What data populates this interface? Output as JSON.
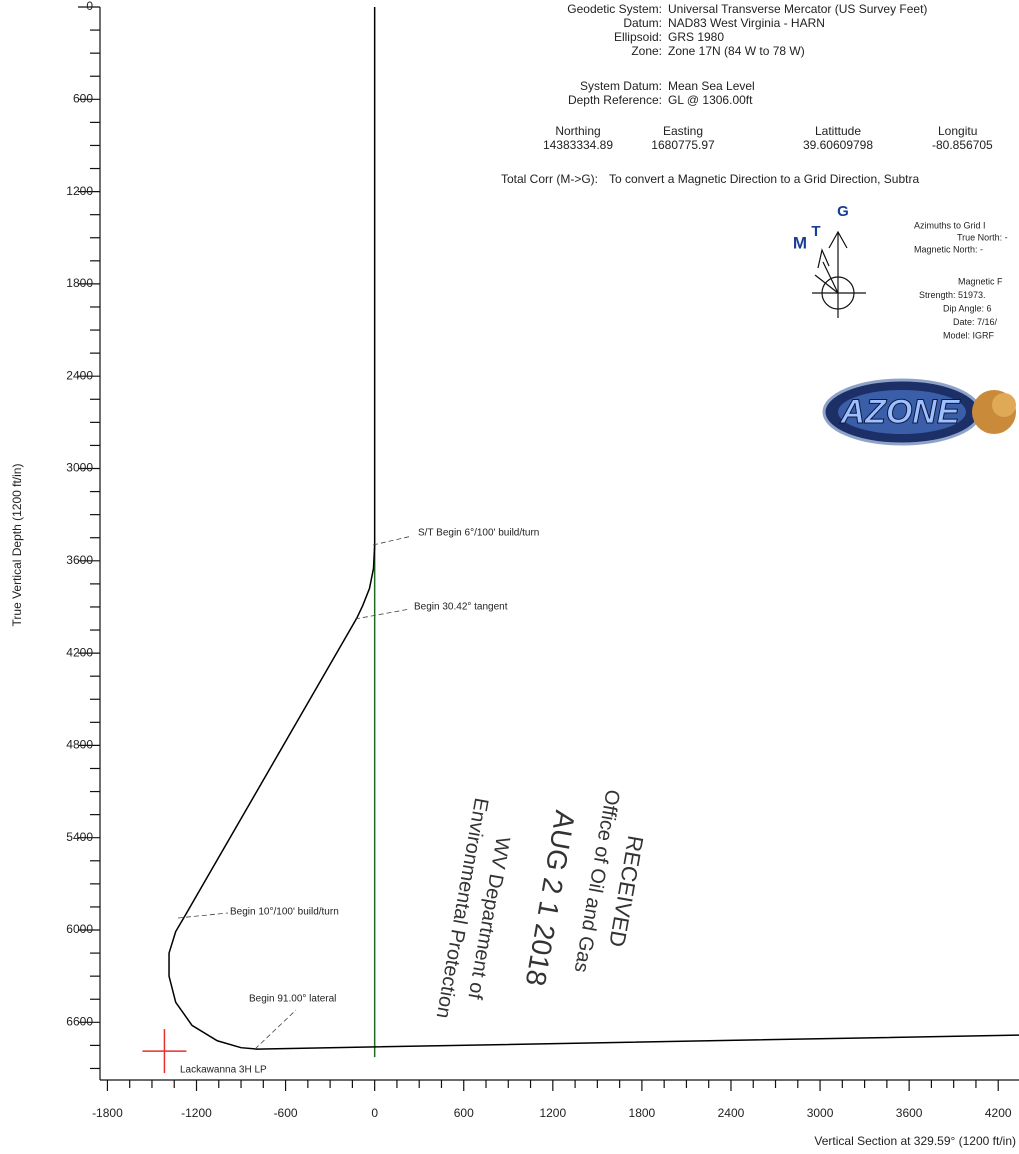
{
  "info": {
    "geodetic": [
      {
        "label": "Geodetic System:",
        "value": "Universal Transverse Mercator (US Survey Feet)"
      },
      {
        "label": "Datum:",
        "value": "NAD83 West Virginia - HARN"
      },
      {
        "label": "Ellipsoid:",
        "value": "GRS 1980"
      },
      {
        "label": "Zone:",
        "value": "Zone 17N (84 W to 78 W)"
      },
      {
        "label": "System Datum:",
        "value": "Mean Sea Level"
      },
      {
        "label": "Depth Reference:",
        "value": "GL @ 1306.00ft"
      }
    ],
    "coordinates": [
      {
        "label": "Northing",
        "value": "14383334.89"
      },
      {
        "label": "Easting",
        "value": "1680775.97"
      },
      {
        "label": "Latittude",
        "value": "39.60609798"
      },
      {
        "label": "Longitu",
        "value": "-80.856705"
      }
    ],
    "total_corr": {
      "label": "Total Corr (M->G):",
      "value": "To convert a Magnetic Direction to a Grid Direction, Subtra"
    },
    "azimuths": [
      "Azimuths to Grid I",
      "True North: -",
      "Magnetic North: -"
    ],
    "magnetic": [
      "Magnetic F",
      "Strength: 51973.",
      "Dip Angle: 6",
      "Date: 7/16/",
      "Model: IGRF"
    ],
    "north_arrow": [
      "M",
      "T",
      "G"
    ],
    "logo": "AZONE",
    "stamp": [
      "RECEIVED",
      "Office of Oil and Gas",
      "AUG 2 1 2018",
      "WV Department of",
      "Environmental Protection"
    ]
  },
  "chart_data": {
    "type": "line",
    "x_label": "Vertical Section at 329.59° (1200 ft/in)",
    "y_label": "True Vertical Depth (1200 ft/in)",
    "xlim": [
      -1850,
      4340
    ],
    "ylim": [
      6975,
      0
    ],
    "xticks": [
      -1800,
      -1200,
      -600,
      0,
      600,
      1200,
      1800,
      2400,
      3000,
      3600,
      4200
    ],
    "yticks": [
      0,
      600,
      1200,
      1800,
      2400,
      3000,
      3600,
      4200,
      4800,
      5400,
      6000,
      6600
    ],
    "xminorticks": [
      -1650,
      -1500,
      -1350,
      -1050,
      -900,
      -750,
      -450,
      -300,
      -150,
      150,
      300,
      450,
      750,
      900,
      1050,
      1350,
      1500,
      1650,
      1950,
      2100,
      2250,
      2550,
      2700,
      2850,
      3150,
      3300,
      3450,
      3750,
      3900,
      4050
    ],
    "yminorticks": [
      150,
      300,
      450,
      750,
      900,
      1050,
      1350,
      1500,
      1650,
      1950,
      2100,
      2250,
      2550,
      2700,
      2850,
      3150,
      3300,
      3450,
      3750,
      3900,
      4050,
      4350,
      4500,
      4650,
      4950,
      5100,
      5250,
      5550,
      5700,
      5850,
      6150,
      6300,
      6450,
      6750,
      6900
    ],
    "series": [
      {
        "color": "#1f6b1f",
        "x": [
          0,
          0
        ],
        "values": [
          3500,
          6826
        ]
      },
      {
        "color": "#000000",
        "x": [
          0,
          0,
          -8,
          -35,
          -80,
          -120,
          -1275,
          -1340,
          -1385,
          -1385,
          -1340,
          -1230,
          -1060,
          -900,
          -792,
          4340
        ],
        "values": [
          0,
          3500,
          3650,
          3780,
          3890,
          3972,
          5903,
          6010,
          6150,
          6300,
          6470,
          6620,
          6720,
          6765,
          6774,
          6683
        ]
      }
    ],
    "target": {
      "label": "Lackawanna 3H LP",
      "x": -1416,
      "y": 6787,
      "color": "#e8302a"
    },
    "annotations": [
      "S/T Begin 6°/100' build/turn",
      "Begin 30.42° tangent",
      "Begin 10°/100' build/turn",
      "Begin 91.00° lateral"
    ]
  }
}
